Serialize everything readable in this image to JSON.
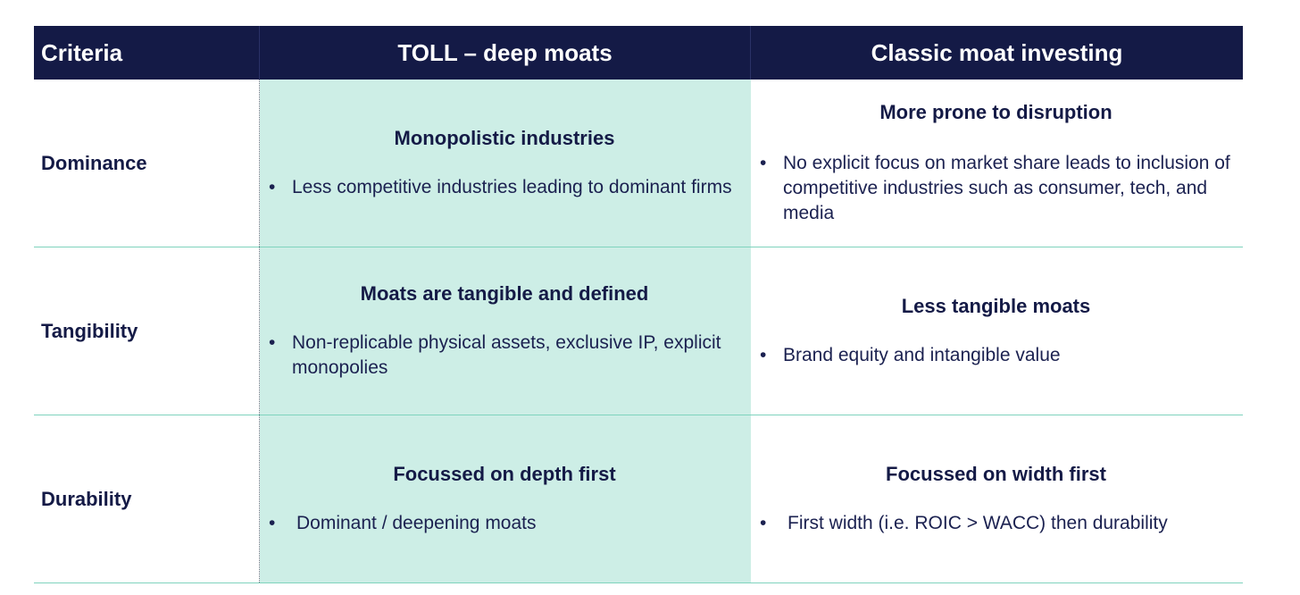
{
  "header": {
    "criteria": "Criteria",
    "toll": "TOLL – deep moats",
    "classic": "Classic moat investing"
  },
  "rows": [
    {
      "criteria": "Dominance",
      "toll_heading": "Monopolistic industries",
      "toll_bullet": "Less competitive industries leading to dominant firms",
      "classic_heading": "More prone to disruption",
      "classic_bullet": "No explicit focus on market share leads to inclusion of competitive industries such as consumer, tech, and media"
    },
    {
      "criteria": "Tangibility",
      "toll_heading": "Moats are tangible and defined",
      "toll_bullet": "Non-replicable physical assets, exclusive IP, explicit monopolies",
      "classic_heading": "Less tangible moats",
      "classic_bullet": "Brand equity and intangible value"
    },
    {
      "criteria": "Durability",
      "toll_heading": "Focussed on depth first",
      "toll_bullet": "Dominant / deepening moats",
      "classic_heading": "Focussed on width first",
      "classic_bullet": "First width (i.e. ROIC > WACC) then durability"
    }
  ],
  "bullet_glyph": "•",
  "colors": {
    "header_bg": "#141a46",
    "toll_bg": "#cdeee6",
    "divider": "#7fd3bd"
  }
}
